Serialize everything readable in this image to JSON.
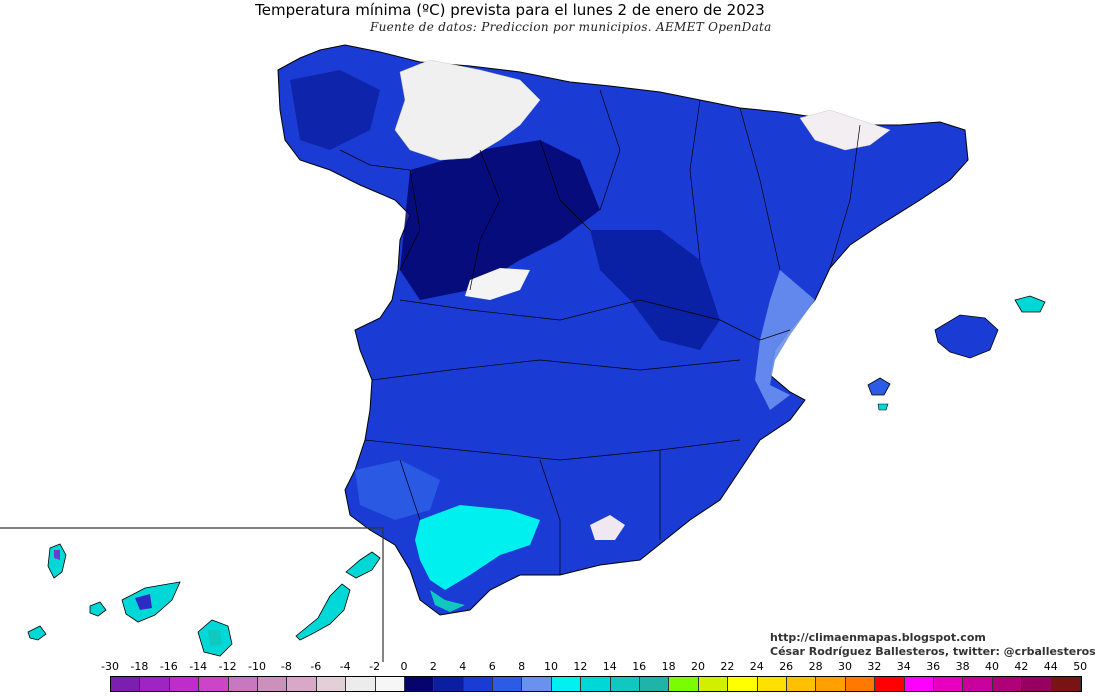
{
  "title": "Temperatura mínima (ºC) prevista para el lunes 2 de enero de 2023",
  "subtitle": "Fuente de datos: Prediccion por municipios. AEMET OpenData",
  "credits": {
    "blog": "http://climaenmapas.blogspot.com",
    "author": "César Rodríguez Ballesteros, twitter: @crballesteros"
  },
  "legend": {
    "tick_labels": [
      "-30",
      "-18",
      "-16",
      "-14",
      "-12",
      "-10",
      "-8",
      "-6",
      "-4",
      "-2",
      "0",
      "2",
      "4",
      "6",
      "8",
      "10",
      "12",
      "14",
      "16",
      "18",
      "20",
      "22",
      "24",
      "26",
      "28",
      "30",
      "32",
      "34",
      "36",
      "38",
      "40",
      "42",
      "44",
      "50"
    ],
    "colors": [
      "#7a1fb0",
      "#a024c4",
      "#c02ccc",
      "#cc44c8",
      "#c878c0",
      "#cc90bc",
      "#d8a8c8",
      "#e2cfd8",
      "#ececec",
      "#f6f6f6",
      "#04046c",
      "#0a1ea0",
      "#1a3cd4",
      "#2c5ce6",
      "#6a90f0",
      "#00f0f0",
      "#00d8d8",
      "#10c8c0",
      "#20b4a8",
      "#7cfc00",
      "#d0f000",
      "#ffff00",
      "#ffe000",
      "#ffc000",
      "#ffa000",
      "#ff7800",
      "#ff0000",
      "#ff00ff",
      "#e800c0",
      "#c8009c",
      "#b00078",
      "#960060",
      "#7a1414"
    ]
  },
  "colors": {
    "map_base": "#1a3cd4",
    "deep": "#04046c",
    "mid": "#2c5ce6",
    "light": "#6a90f0",
    "cyan": "#00f0f0",
    "snow": "#f0f0f0",
    "land_outline": "#000000"
  }
}
